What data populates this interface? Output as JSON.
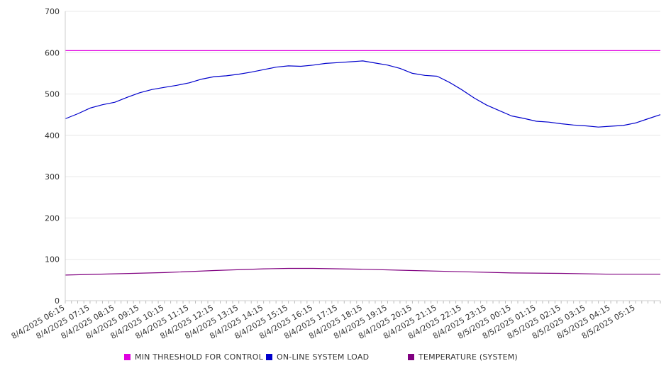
{
  "chart_data": {
    "type": "line",
    "title": "",
    "xlabel": "",
    "ylabel": "",
    "ylim": [
      0,
      700
    ],
    "yticks": [
      0,
      100,
      200,
      300,
      400,
      500,
      600,
      700
    ],
    "grid": true,
    "legend_position": "bottom",
    "x_range": [
      "8/4/2025 06:15",
      "8/5/2025 06:15"
    ],
    "x_tick_labels": [
      "8/4/2025 06:15",
      "8/4/2025 07:15",
      "8/4/2025 08:15",
      "8/4/2025 09:15",
      "8/4/2025 10:15",
      "8/4/2025 11:15",
      "8/4/2025 12:15",
      "8/4/2025 13:15",
      "8/4/2025 14:15",
      "8/4/2025 15:15",
      "8/4/2025 16:15",
      "8/4/2025 17:15",
      "8/4/2025 18:15",
      "8/4/2025 19:15",
      "8/4/2025 20:15",
      "8/4/2025 21:15",
      "8/4/2025 22:15",
      "8/4/2025 23:15",
      "8/5/2025 00:15",
      "8/5/2025 01:15",
      "8/5/2025 02:15",
      "8/5/2025 03:15",
      "8/5/2025 04:15",
      "8/5/2025 05:15"
    ],
    "series": [
      {
        "name": "MIN THRESHOLD FOR CONTROL",
        "color": "#e000e0",
        "x": [
          "8/4/2025 06:15",
          "8/5/2025 06:15"
        ],
        "values": [
          605,
          605
        ]
      },
      {
        "name": "ON-LINE SYSTEM LOAD",
        "color": "#0000cc",
        "x": [
          "8/4/2025 06:15",
          "8/4/2025 06:45",
          "8/4/2025 07:15",
          "8/4/2025 07:45",
          "8/4/2025 08:15",
          "8/4/2025 08:45",
          "8/4/2025 09:15",
          "8/4/2025 09:45",
          "8/4/2025 10:15",
          "8/4/2025 10:45",
          "8/4/2025 11:15",
          "8/4/2025 11:45",
          "8/4/2025 12:15",
          "8/4/2025 12:45",
          "8/4/2025 13:15",
          "8/4/2025 13:45",
          "8/4/2025 14:15",
          "8/4/2025 14:45",
          "8/4/2025 15:15",
          "8/4/2025 15:45",
          "8/4/2025 16:15",
          "8/4/2025 16:45",
          "8/4/2025 17:15",
          "8/4/2025 17:45",
          "8/4/2025 18:15",
          "8/4/2025 18:45",
          "8/4/2025 19:15",
          "8/4/2025 19:45",
          "8/4/2025 20:15",
          "8/4/2025 20:45",
          "8/4/2025 21:15",
          "8/4/2025 21:45",
          "8/4/2025 22:15",
          "8/4/2025 22:45",
          "8/4/2025 23:15",
          "8/4/2025 23:45",
          "8/5/2025 00:15",
          "8/5/2025 00:45",
          "8/5/2025 01:15",
          "8/5/2025 01:45",
          "8/5/2025 02:15",
          "8/5/2025 02:45",
          "8/5/2025 03:15",
          "8/5/2025 03:45",
          "8/5/2025 04:15",
          "8/5/2025 04:45",
          "8/5/2025 05:15",
          "8/5/2025 05:45",
          "8/5/2025 06:15"
        ],
        "values": [
          440,
          452,
          466,
          474,
          480,
          492,
          503,
          511,
          516,
          521,
          527,
          536,
          542,
          544,
          548,
          553,
          559,
          565,
          568,
          567,
          570,
          574,
          576,
          578,
          580,
          575,
          570,
          562,
          550,
          545,
          543,
          528,
          510,
          490,
          473,
          460,
          447,
          441,
          434,
          432,
          428,
          425,
          423,
          420,
          422,
          424,
          430,
          440,
          450
        ]
      },
      {
        "name": "TEMPERATURE (SYSTEM)",
        "color": "#800080",
        "x": [
          "8/4/2025 06:15",
          "8/4/2025 08:15",
          "8/4/2025 10:15",
          "8/4/2025 12:15",
          "8/4/2025 14:15",
          "8/4/2025 15:15",
          "8/4/2025 16:15",
          "8/4/2025 18:15",
          "8/4/2025 20:15",
          "8/4/2025 22:15",
          "8/5/2025 00:15",
          "8/5/2025 02:15",
          "8/5/2025 04:15",
          "8/5/2025 06:15"
        ],
        "values": [
          62,
          65,
          68,
          73,
          77,
          78,
          78,
          76,
          73,
          70,
          67,
          66,
          64,
          64
        ]
      }
    ]
  }
}
